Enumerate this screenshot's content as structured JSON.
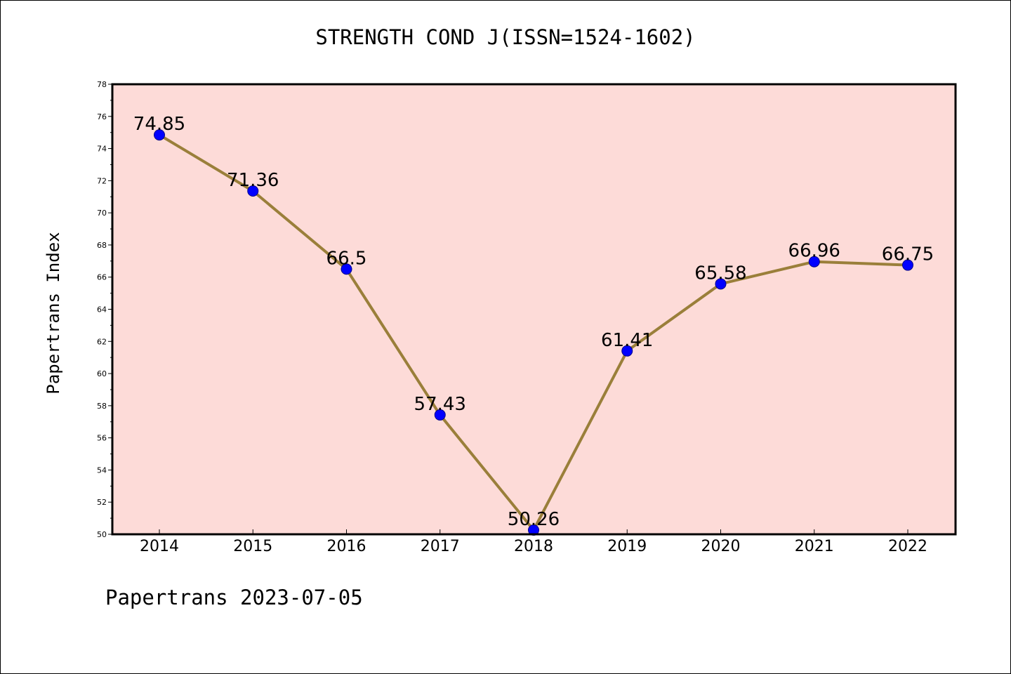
{
  "title": "STRENGTH COND J(ISSN=1524-1602)",
  "footer": "Papertrans 2023-07-05",
  "chart_data": {
    "type": "line",
    "title": "STRENGTH COND J(ISSN=1524-1602)",
    "xlabel": "",
    "ylabel": "Papertrans Index",
    "categories": [
      "2014",
      "2015",
      "2016",
      "2017",
      "2018",
      "2019",
      "2020",
      "2021",
      "2022"
    ],
    "series": [
      {
        "values": [
          74.85,
          71.36,
          66.5,
          57.43,
          50.26,
          61.41,
          65.58,
          66.96,
          66.75
        ],
        "labels": [
          "74.85",
          "71.36",
          "66.5",
          "57.43",
          "50.26",
          "61.41",
          "65.58",
          "66.96",
          "66.75"
        ]
      }
    ],
    "ylim": [
      50,
      78
    ],
    "yticks": [
      50,
      52,
      54,
      56,
      58,
      60,
      62,
      64,
      66,
      68,
      70,
      72,
      74,
      76,
      78
    ],
    "grid": false,
    "legend": "none",
    "colors": {
      "plot_background": "#fddbd8",
      "line": "#9a7f3a",
      "marker": "#0000ff",
      "marker_edge": "#00008b"
    }
  }
}
